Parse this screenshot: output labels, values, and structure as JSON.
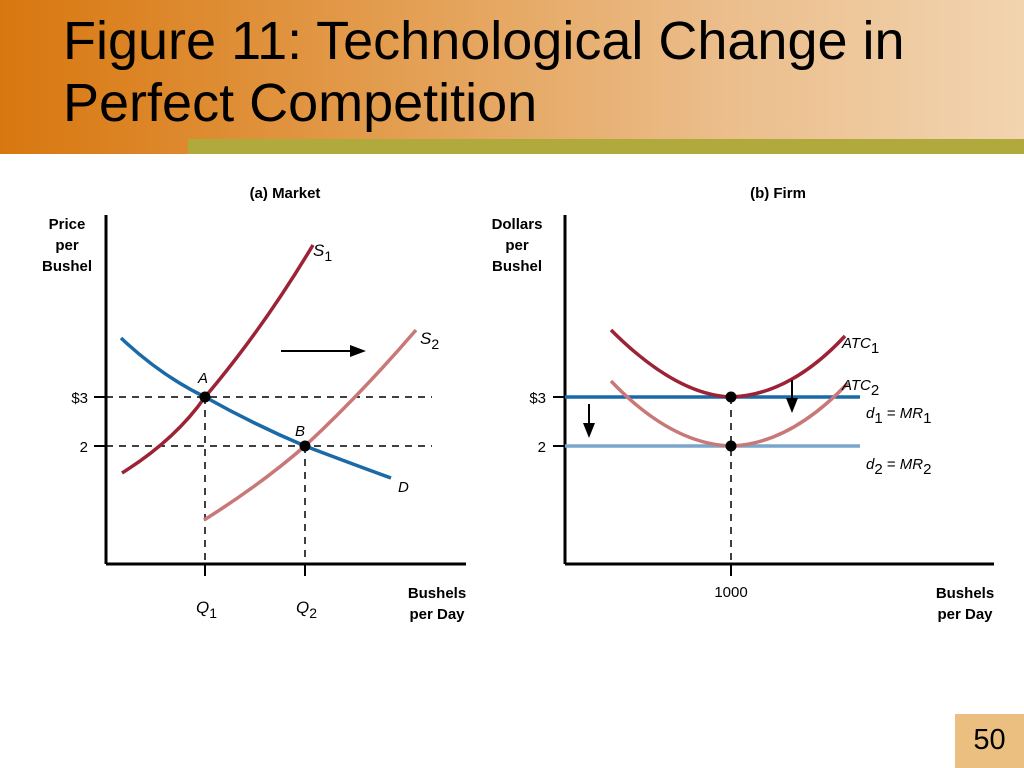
{
  "slide": {
    "title_line1": "Figure 11:  Technological Change in",
    "title_line2": "Perfect Competition",
    "page_number": "50"
  },
  "panel_a": {
    "title": "(a) Market",
    "ylabel_lines": [
      "Price",
      "per",
      "Bushel"
    ],
    "xlabel_lines": [
      "Bushels",
      "per Day"
    ],
    "price_labels": [
      "$3",
      "2"
    ],
    "quantity_labels": [
      {
        "letter": "Q",
        "sub": "1"
      },
      {
        "letter": "Q",
        "sub": "2"
      }
    ],
    "curves": [
      {
        "name": "S",
        "sub": "1",
        "color": "#9b2335"
      },
      {
        "name": "S",
        "sub": "2",
        "color": "#c97878"
      },
      {
        "name": "D",
        "sub": "",
        "color": "#1a6aa8"
      }
    ],
    "points": [
      "A",
      "B"
    ]
  },
  "panel_b": {
    "title": "(b) Firm",
    "ylabel_lines": [
      "Dollars",
      "per",
      "Bushel"
    ],
    "xlabel_lines": [
      "Bushels",
      "per Day"
    ],
    "price_labels": [
      "$3",
      "2"
    ],
    "quantity_label": "1000",
    "curves": [
      {
        "name": "ATC",
        "sub": "1",
        "color": "#9b2335"
      },
      {
        "name": "ATC",
        "sub": "2",
        "color": "#c97878"
      }
    ],
    "demand_lines": [
      {
        "d": "d",
        "dsub": "1",
        "mr": "MR",
        "mrsub": "1",
        "color": "#1a6aa8"
      },
      {
        "d": "d",
        "dsub": "2",
        "mr": "MR",
        "mrsub": "2",
        "color": "#7aa6cc"
      }
    ]
  }
}
